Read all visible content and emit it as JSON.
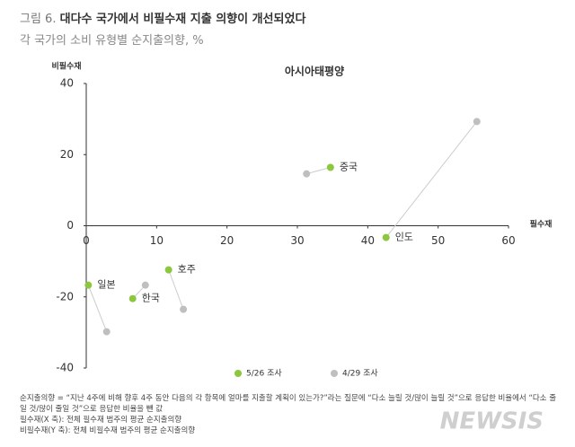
{
  "figure_label": "그림 6.",
  "chart_data": {
    "type": "scatter",
    "title": "대다수 국가에서 비필수재 지출 의향이 개선되었다",
    "subtitle": "각 국가의 소비 유형별 순지출의향, %",
    "chart_title": "아시아태평양",
    "x_label": "필수재",
    "y_label": "비필수재",
    "labels": [
      "일본",
      "한국",
      "호주",
      "중국",
      "인도"
    ],
    "series": [
      {
        "name": "5/26 조사",
        "color": "#8dc63f",
        "x": [
          0.3,
          6.6,
          11.7,
          34.7,
          42.6
        ],
        "values": [
          -16.7,
          -20.5,
          -12.4,
          16.4,
          -3.3
        ]
      },
      {
        "name": "4/29 조사",
        "color": "#bfbfbf",
        "x": [
          2.9,
          8.4,
          13.8,
          31.3,
          55.5
        ],
        "values": [
          -29.8,
          -16.7,
          -23.5,
          14.6,
          29.3
        ]
      }
    ],
    "xlim": [
      0,
      60
    ],
    "xticks": [
      0,
      10,
      20,
      30,
      40,
      50,
      60
    ],
    "ylim": [
      -40,
      40
    ],
    "yticks": [
      -40,
      -20,
      0,
      20,
      40
    ]
  },
  "notes": [
    "순지출의향 = “지난 4주에 비해 향후 4주 동안 다음의 각 항목에 얼마를 지출할 계획이 있는가?”라는 질문에 “다소 늘릴 것/많이 늘릴 것”으로 응답한 비율에서 “다소 줄일 것/많이 줄일 것”으로 응답한 비율을 뺀 값",
    "필수재(X 축): 전체 필수재 범주의 평균 순지출의향",
    "비필수재(Y 축): 전체 비필수재 범주의 평균 순지출의향"
  ],
  "watermark": "NEWSIS"
}
